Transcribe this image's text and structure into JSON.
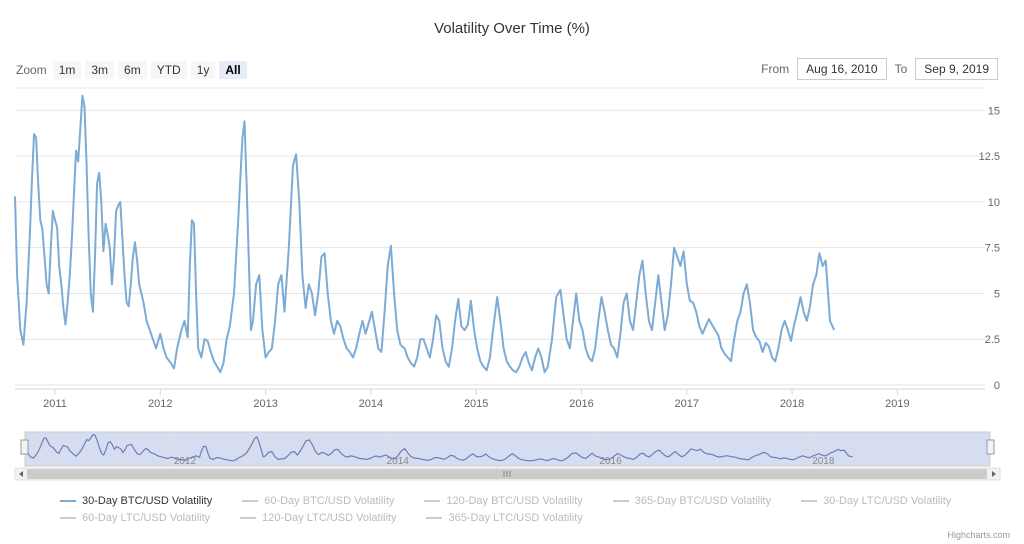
{
  "title": "Volatility Over Time (%)",
  "zoom": {
    "label": "Zoom",
    "buttons": [
      "1m",
      "3m",
      "6m",
      "YTD",
      "1y",
      "All"
    ],
    "selected": "All"
  },
  "range": {
    "from_label": "From",
    "from_value": "Aug 16, 2010",
    "to_label": "To",
    "to_value": "Sep 9, 2019"
  },
  "credits": "Highcharts.com",
  "colors": {
    "series": "#7cabd6",
    "grid": "#e6e6e6",
    "navigator_mask": "#d7ddf0"
  },
  "legend": [
    [
      {
        "label": "30-Day BTC/USD Volatility",
        "active": true
      },
      {
        "label": "60-Day BTC/USD Volatility",
        "active": false
      },
      {
        "label": "120-Day BTC/USD Volatility",
        "active": false
      },
      {
        "label": "365-Day BTC/USD Volatility",
        "active": false
      },
      {
        "label": "30-Day LTC/USD Volatility",
        "active": false
      }
    ],
    [
      {
        "label": "60-Day LTC/USD Volatility",
        "active": false
      },
      {
        "label": "120-Day LTC/USD Volatility",
        "active": false
      },
      {
        "label": "365-Day LTC/USD Volatility",
        "active": false
      }
    ]
  ],
  "chart_data": {
    "type": "line",
    "title": "Volatility Over Time (%)",
    "xlabel": "",
    "ylabel": "",
    "x_range": [
      2010.62,
      2019.69
    ],
    "ylim": [
      0,
      16
    ],
    "y_ticks": [
      0,
      2.5,
      5,
      7.5,
      10,
      12.5,
      15
    ],
    "y_tick_labels": [
      "0",
      "2.5",
      "5",
      "7.5",
      "10",
      "12.5",
      "15"
    ],
    "x_ticks": [
      2011,
      2012,
      2013,
      2014,
      2015,
      2016,
      2017,
      2018,
      2019
    ],
    "x_tick_labels": [
      "2011",
      "2012",
      "2013",
      "2014",
      "2015",
      "2016",
      "2017",
      "2018",
      "2019"
    ],
    "navigator_labels": [
      "2012",
      "2014",
      "2016",
      "2018"
    ],
    "grid": true,
    "legend_position": "bottom",
    "series": [
      {
        "name": "30-Day BTC/USD Volatility",
        "points": [
          [
            2010.62,
            10.3
          ],
          [
            2010.64,
            6.0
          ],
          [
            2010.67,
            3.0
          ],
          [
            2010.7,
            2.2
          ],
          [
            2010.73,
            4.5
          ],
          [
            2010.76,
            8.0
          ],
          [
            2010.78,
            11.0
          ],
          [
            2010.8,
            13.7
          ],
          [
            2010.82,
            13.5
          ],
          [
            2010.84,
            11.0
          ],
          [
            2010.86,
            9.0
          ],
          [
            2010.88,
            8.5
          ],
          [
            2010.9,
            7.0
          ],
          [
            2010.92,
            5.5
          ],
          [
            2010.94,
            5.0
          ],
          [
            2010.96,
            7.5
          ],
          [
            2010.98,
            9.5
          ],
          [
            2011.0,
            9.0
          ],
          [
            2011.02,
            8.6
          ],
          [
            2011.04,
            6.5
          ],
          [
            2011.06,
            5.5
          ],
          [
            2011.08,
            4.2
          ],
          [
            2011.1,
            3.3
          ],
          [
            2011.12,
            4.5
          ],
          [
            2011.14,
            6.0
          ],
          [
            2011.16,
            8.0
          ],
          [
            2011.18,
            10.5
          ],
          [
            2011.2,
            12.8
          ],
          [
            2011.22,
            12.2
          ],
          [
            2011.24,
            14.0
          ],
          [
            2011.26,
            15.8
          ],
          [
            2011.28,
            15.2
          ],
          [
            2011.3,
            12.0
          ],
          [
            2011.32,
            8.0
          ],
          [
            2011.34,
            5.0
          ],
          [
            2011.36,
            4.0
          ],
          [
            2011.38,
            7.0
          ],
          [
            2011.4,
            11.0
          ],
          [
            2011.42,
            11.6
          ],
          [
            2011.44,
            10.0
          ],
          [
            2011.46,
            7.3
          ],
          [
            2011.48,
            8.8
          ],
          [
            2011.5,
            8.2
          ],
          [
            2011.52,
            7.5
          ],
          [
            2011.54,
            5.5
          ],
          [
            2011.56,
            7.0
          ],
          [
            2011.58,
            9.5
          ],
          [
            2011.6,
            9.8
          ],
          [
            2011.62,
            10.0
          ],
          [
            2011.64,
            8.0
          ],
          [
            2011.66,
            6.0
          ],
          [
            2011.68,
            4.5
          ],
          [
            2011.7,
            4.3
          ],
          [
            2011.72,
            5.5
          ],
          [
            2011.74,
            7.0
          ],
          [
            2011.76,
            7.8
          ],
          [
            2011.78,
            6.8
          ],
          [
            2011.8,
            5.5
          ],
          [
            2011.82,
            5.0
          ],
          [
            2011.84,
            4.5
          ],
          [
            2011.87,
            3.5
          ],
          [
            2011.9,
            3.0
          ],
          [
            2011.93,
            2.5
          ],
          [
            2011.96,
            2.0
          ],
          [
            2012.0,
            2.8
          ],
          [
            2012.03,
            2.0
          ],
          [
            2012.06,
            1.5
          ],
          [
            2012.1,
            1.2
          ],
          [
            2012.13,
            0.9
          ],
          [
            2012.16,
            2.0
          ],
          [
            2012.2,
            3.0
          ],
          [
            2012.23,
            3.5
          ],
          [
            2012.26,
            2.6
          ],
          [
            2012.28,
            6.5
          ],
          [
            2012.3,
            9.0
          ],
          [
            2012.32,
            8.8
          ],
          [
            2012.34,
            5.0
          ],
          [
            2012.36,
            2.0
          ],
          [
            2012.39,
            1.5
          ],
          [
            2012.42,
            2.5
          ],
          [
            2012.45,
            2.4
          ],
          [
            2012.48,
            1.8
          ],
          [
            2012.51,
            1.3
          ],
          [
            2012.54,
            1.0
          ],
          [
            2012.57,
            0.7
          ],
          [
            2012.6,
            1.2
          ],
          [
            2012.63,
            2.5
          ],
          [
            2012.66,
            3.2
          ],
          [
            2012.7,
            5.0
          ],
          [
            2012.74,
            9.0
          ],
          [
            2012.78,
            13.5
          ],
          [
            2012.8,
            14.4
          ],
          [
            2012.82,
            11.0
          ],
          [
            2012.84,
            7.0
          ],
          [
            2012.86,
            3.0
          ],
          [
            2012.88,
            3.5
          ],
          [
            2012.91,
            5.5
          ],
          [
            2012.94,
            6.0
          ],
          [
            2012.97,
            3.0
          ],
          [
            2013.0,
            1.5
          ],
          [
            2013.03,
            1.8
          ],
          [
            2013.06,
            2.0
          ],
          [
            2013.09,
            3.5
          ],
          [
            2013.12,
            5.5
          ],
          [
            2013.15,
            6.0
          ],
          [
            2013.18,
            4.0
          ],
          [
            2013.22,
            7.5
          ],
          [
            2013.26,
            12.0
          ],
          [
            2013.29,
            12.6
          ],
          [
            2013.32,
            10.0
          ],
          [
            2013.35,
            6.0
          ],
          [
            2013.38,
            4.2
          ],
          [
            2013.41,
            5.5
          ],
          [
            2013.44,
            5.0
          ],
          [
            2013.47,
            3.8
          ],
          [
            2013.5,
            5.0
          ],
          [
            2013.53,
            7.0
          ],
          [
            2013.56,
            7.2
          ],
          [
            2013.59,
            5.0
          ],
          [
            2013.62,
            3.5
          ],
          [
            2013.65,
            2.8
          ],
          [
            2013.68,
            3.5
          ],
          [
            2013.71,
            3.2
          ],
          [
            2013.74,
            2.5
          ],
          [
            2013.77,
            2.0
          ],
          [
            2013.8,
            1.8
          ],
          [
            2013.83,
            1.5
          ],
          [
            2013.86,
            2.0
          ],
          [
            2013.89,
            2.8
          ],
          [
            2013.92,
            3.5
          ],
          [
            2013.95,
            2.8
          ],
          [
            2013.98,
            3.4
          ],
          [
            2014.01,
            4.0
          ],
          [
            2014.04,
            3.0
          ],
          [
            2014.07,
            2.0
          ],
          [
            2014.1,
            1.8
          ],
          [
            2014.13,
            4.0
          ],
          [
            2014.16,
            6.5
          ],
          [
            2014.19,
            7.6
          ],
          [
            2014.22,
            5.0
          ],
          [
            2014.25,
            3.0
          ],
          [
            2014.28,
            2.2
          ],
          [
            2014.32,
            2.0
          ],
          [
            2014.35,
            1.5
          ],
          [
            2014.38,
            1.2
          ],
          [
            2014.41,
            1.0
          ],
          [
            2014.44,
            1.5
          ],
          [
            2014.47,
            2.5
          ],
          [
            2014.5,
            2.5
          ],
          [
            2014.53,
            2.0
          ],
          [
            2014.56,
            1.5
          ],
          [
            2014.59,
            2.5
          ],
          [
            2014.62,
            3.8
          ],
          [
            2014.65,
            3.5
          ],
          [
            2014.68,
            2.0
          ],
          [
            2014.71,
            1.3
          ],
          [
            2014.74,
            1.0
          ],
          [
            2014.77,
            2.0
          ],
          [
            2014.8,
            3.5
          ],
          [
            2014.83,
            4.7
          ],
          [
            2014.86,
            3.2
          ],
          [
            2014.89,
            3.0
          ],
          [
            2014.92,
            3.3
          ],
          [
            2014.95,
            4.6
          ],
          [
            2014.98,
            3.0
          ],
          [
            2015.01,
            2.0
          ],
          [
            2015.04,
            1.3
          ],
          [
            2015.07,
            1.0
          ],
          [
            2015.1,
            0.8
          ],
          [
            2015.13,
            1.5
          ],
          [
            2015.16,
            3.0
          ],
          [
            2015.2,
            4.8
          ],
          [
            2015.23,
            3.5
          ],
          [
            2015.26,
            2.0
          ],
          [
            2015.29,
            1.3
          ],
          [
            2015.32,
            1.0
          ],
          [
            2015.35,
            0.8
          ],
          [
            2015.38,
            0.7
          ],
          [
            2015.41,
            1.0
          ],
          [
            2015.44,
            1.5
          ],
          [
            2015.47,
            1.8
          ],
          [
            2015.5,
            1.2
          ],
          [
            2015.53,
            0.8
          ],
          [
            2015.56,
            1.5
          ],
          [
            2015.59,
            2.0
          ],
          [
            2015.62,
            1.5
          ],
          [
            2015.65,
            0.7
          ],
          [
            2015.68,
            1.0
          ],
          [
            2015.72,
            2.5
          ],
          [
            2015.76,
            4.8
          ],
          [
            2015.8,
            5.2
          ],
          [
            2015.83,
            3.8
          ],
          [
            2015.86,
            2.5
          ],
          [
            2015.89,
            2.0
          ],
          [
            2015.92,
            3.5
          ],
          [
            2015.95,
            5.0
          ],
          [
            2015.98,
            3.5
          ],
          [
            2016.01,
            3.0
          ],
          [
            2016.04,
            2.0
          ],
          [
            2016.07,
            1.5
          ],
          [
            2016.1,
            1.3
          ],
          [
            2016.13,
            2.0
          ],
          [
            2016.16,
            3.5
          ],
          [
            2016.19,
            4.8
          ],
          [
            2016.22,
            4.0
          ],
          [
            2016.25,
            3.0
          ],
          [
            2016.28,
            2.2
          ],
          [
            2016.31,
            2.0
          ],
          [
            2016.34,
            1.5
          ],
          [
            2016.37,
            2.8
          ],
          [
            2016.4,
            4.5
          ],
          [
            2016.43,
            5.0
          ],
          [
            2016.46,
            3.5
          ],
          [
            2016.49,
            3.0
          ],
          [
            2016.52,
            4.5
          ],
          [
            2016.55,
            6.0
          ],
          [
            2016.58,
            6.8
          ],
          [
            2016.61,
            5.0
          ],
          [
            2016.64,
            3.5
          ],
          [
            2016.67,
            3.0
          ],
          [
            2016.7,
            4.5
          ],
          [
            2016.73,
            6.0
          ],
          [
            2016.76,
            4.5
          ],
          [
            2016.79,
            3.0
          ],
          [
            2016.82,
            3.8
          ],
          [
            2016.85,
            5.5
          ],
          [
            2016.88,
            7.5
          ],
          [
            2016.91,
            7.0
          ],
          [
            2016.94,
            6.5
          ],
          [
            2016.97,
            7.3
          ],
          [
            2017.0,
            5.5
          ],
          [
            2017.03,
            4.6
          ],
          [
            2017.06,
            4.5
          ],
          [
            2017.09,
            4.0
          ],
          [
            2017.12,
            3.2
          ],
          [
            2017.15,
            2.8
          ],
          [
            2017.18,
            3.2
          ],
          [
            2017.21,
            3.6
          ],
          [
            2017.24,
            3.3
          ],
          [
            2017.27,
            3.0
          ],
          [
            2017.3,
            2.7
          ],
          [
            2017.33,
            2.0
          ],
          [
            2017.36,
            1.7
          ],
          [
            2017.39,
            1.5
          ],
          [
            2017.42,
            1.3
          ],
          [
            2017.45,
            2.5
          ],
          [
            2017.48,
            3.5
          ],
          [
            2017.51,
            4.0
          ],
          [
            2017.54,
            5.0
          ],
          [
            2017.57,
            5.5
          ],
          [
            2017.6,
            4.5
          ],
          [
            2017.63,
            3.0
          ],
          [
            2017.66,
            2.6
          ],
          [
            2017.69,
            2.4
          ],
          [
            2017.72,
            1.8
          ],
          [
            2017.75,
            2.3
          ],
          [
            2017.78,
            2.1
          ],
          [
            2017.81,
            1.5
          ],
          [
            2017.84,
            1.3
          ],
          [
            2017.87,
            2.0
          ],
          [
            2017.9,
            3.0
          ],
          [
            2017.93,
            3.5
          ],
          [
            2017.96,
            3.0
          ],
          [
            2017.99,
            2.4
          ],
          [
            2018.02,
            3.3
          ],
          [
            2018.05,
            4.0
          ],
          [
            2018.08,
            4.8
          ],
          [
            2018.11,
            4.0
          ],
          [
            2018.14,
            3.5
          ],
          [
            2018.17,
            4.3
          ],
          [
            2018.2,
            5.5
          ],
          [
            2018.23,
            6.0
          ],
          [
            2018.26,
            7.2
          ],
          [
            2018.29,
            6.5
          ],
          [
            2018.32,
            6.8
          ],
          [
            2018.36,
            3.5
          ],
          [
            2018.4,
            3.0
          ]
        ]
      }
    ]
  }
}
